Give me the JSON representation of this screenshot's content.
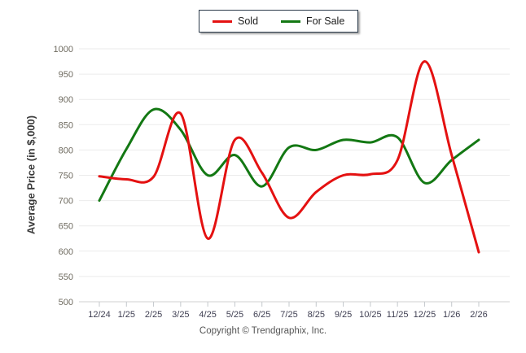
{
  "chart_data": {
    "type": "line",
    "title": "",
    "categories": [
      "12/24",
      "1/25",
      "2/25",
      "3/25",
      "4/25",
      "5/25",
      "6/25",
      "7/25",
      "8/25",
      "9/25",
      "10/25",
      "11/25",
      "12/25",
      "1/26",
      "2/26"
    ],
    "series": [
      {
        "name": "Sold",
        "color": "#e41111",
        "values": [
          748,
          742,
          747,
          872,
          625,
          820,
          755,
          666,
          717,
          750,
          752,
          780,
          975,
          790,
          598
        ]
      },
      {
        "name": "For Sale",
        "color": "#137813",
        "values": [
          700,
          802,
          880,
          840,
          750,
          790,
          728,
          805,
          800,
          820,
          815,
          825,
          735,
          780,
          820
        ]
      }
    ],
    "xlabel": "",
    "ylabel": "Average Price (in $,000)",
    "ylim": [
      500,
      1000
    ],
    "ytick_step": 50,
    "grid": true,
    "legend_position": "top-center",
    "footer": "Copyright © Trendgraphix, Inc."
  },
  "style": {
    "grid_color": "#ebebeb",
    "axis_color": "#d2d2d2",
    "tick_color": "#c4c8cc",
    "y_tick_label_color": "#6f6b60",
    "x_tick_label_color": "#3f3f52"
  }
}
